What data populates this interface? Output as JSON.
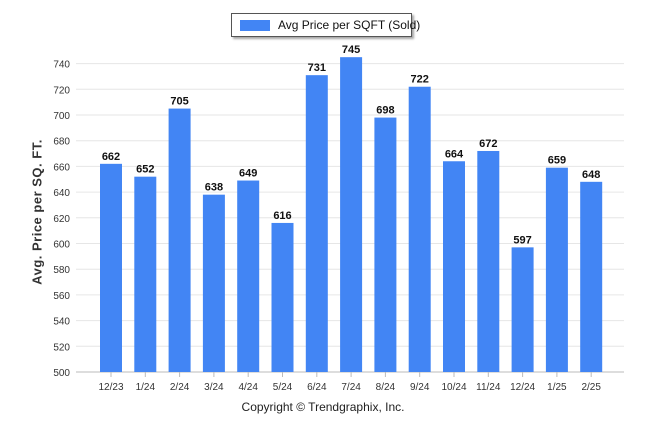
{
  "chart_data": {
    "type": "bar",
    "title": "",
    "legend": "Avg Price per SQFT (Sold)",
    "legend_position": "top-center",
    "ylabel": "Avg. Price per SQ. FT.",
    "xlabel": "",
    "ylim": [
      500,
      750
    ],
    "yticks": [
      500,
      520,
      540,
      560,
      580,
      600,
      620,
      640,
      660,
      680,
      700,
      720,
      740
    ],
    "grid": true,
    "bar_color": "#4285f4",
    "categories": [
      "12/23",
      "1/24",
      "2/24",
      "3/24",
      "4/24",
      "5/24",
      "6/24",
      "7/24",
      "8/24",
      "9/24",
      "10/24",
      "11/24",
      "12/24",
      "1/25",
      "2/25"
    ],
    "series": [
      {
        "name": "Avg Price per SQFT (Sold)",
        "values": [
          662,
          652,
          705,
          638,
          649,
          616,
          731,
          745,
          698,
          722,
          664,
          672,
          597,
          659,
          648
        ]
      }
    ]
  },
  "footer": "Copyright © Trendgraphix, Inc."
}
